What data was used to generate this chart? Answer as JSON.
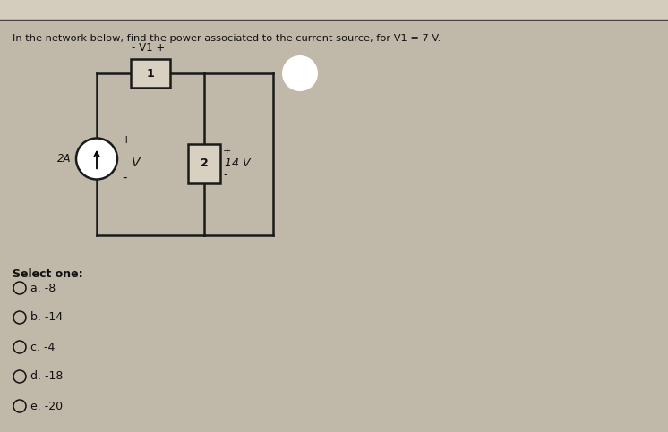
{
  "title": "In the network below, find the power associated to the current source, for V1 = 7 V.",
  "background_color": "#b8b0a0",
  "top_bar_color": "#d0c8b8",
  "panel_color": "#c0b8a8",
  "circuit": {
    "current_source_label": "2A",
    "v_label": "V",
    "v1_label": "- V1 +",
    "r1_label": "1",
    "r2_label": "2",
    "v14_label": "14 V",
    "plus_sign": "+",
    "minus_sign": "-"
  },
  "options_label": "Select one:",
  "options": [
    "a. -8",
    "b. -14",
    "c. -4",
    "d. -18",
    "e. -20"
  ],
  "text_color": "#111111",
  "wire_color": "#1a1a1a",
  "box_fill": "#d8d0c0",
  "circle_fill": "#ffffff",
  "node_fill": "#ffffff",
  "wire_lw": 1.8,
  "fig_w": 7.46,
  "fig_h": 4.83
}
